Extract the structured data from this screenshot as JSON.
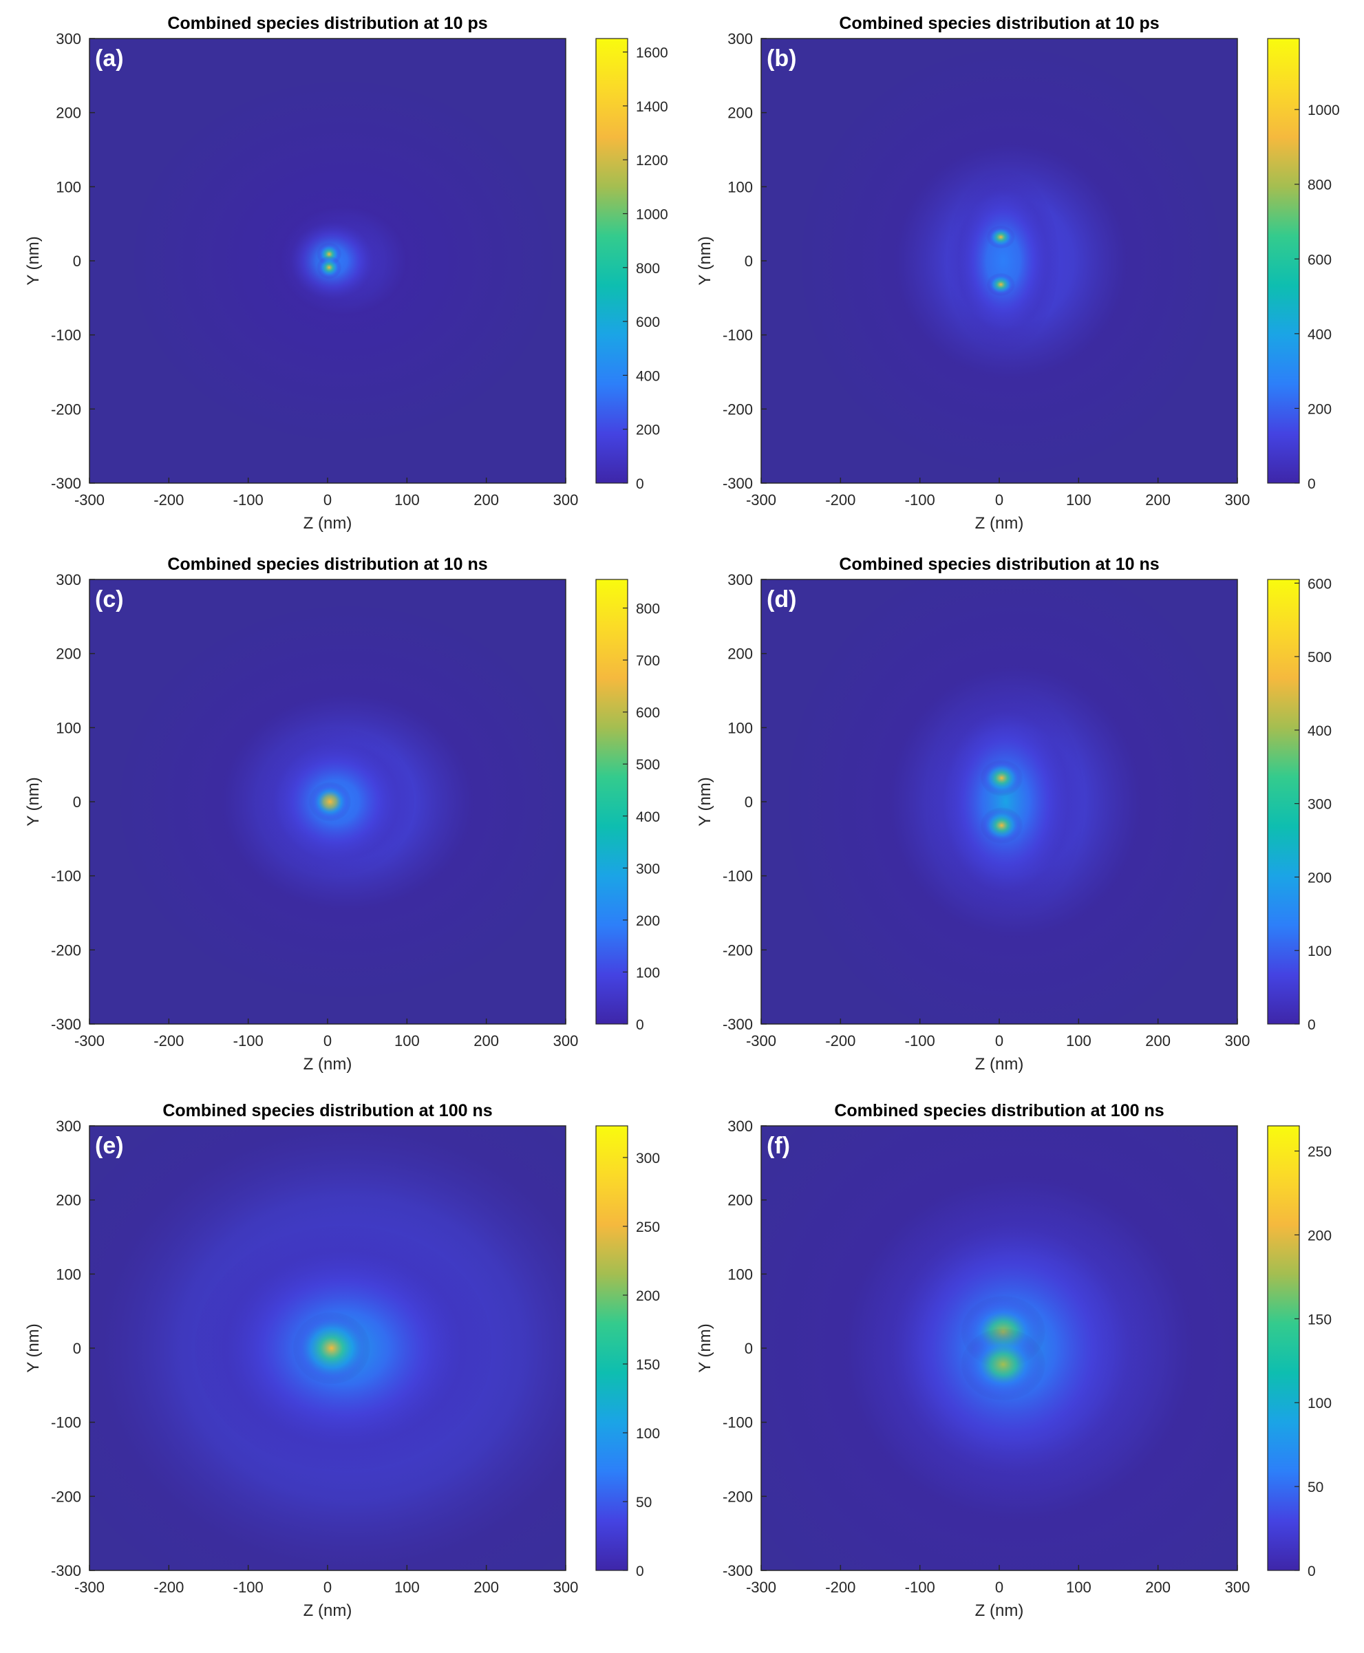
{
  "figure": {
    "colormap": [
      "#3e26a8",
      "#4443e2",
      "#2d7ff9",
      "#1ba4e6",
      "#0ebeb0",
      "#34cb8d",
      "#a4be51",
      "#f5b93e",
      "#fbda28",
      "#f9fb0e"
    ],
    "background_color": "#3a2f9a"
  },
  "chart_data": [
    {
      "type": "heatmap",
      "panel_label": "(a)",
      "title": "Combined species distribution at 10 ps",
      "xlabel": "Z (nm)",
      "ylabel": "Y (nm)",
      "xlim": [
        -300,
        300
      ],
      "ylim": [
        -300,
        300
      ],
      "x_ticks": [
        -300,
        -200,
        -100,
        0,
        100,
        200,
        300
      ],
      "y_ticks": [
        -300,
        -200,
        -100,
        0,
        100,
        200,
        300
      ],
      "colorbar_range": [
        0,
        1650
      ],
      "colorbar_ticks": [
        0,
        200,
        400,
        600,
        800,
        1000,
        1200,
        1400,
        1600
      ],
      "grid": false,
      "hotspots": [
        {
          "z": 2,
          "y": 9,
          "peak": 1300,
          "sigma_z": 7,
          "sigma_y": 7
        },
        {
          "z": 2,
          "y": -9,
          "peak": 1300,
          "sigma_z": 7,
          "sigma_y": 7
        }
      ],
      "halo": {
        "z": 5,
        "y": 0,
        "peak": 420,
        "sigma_z": 30,
        "sigma_y": 30
      },
      "outer_halo": {
        "z": 20,
        "y": 0,
        "peak": 120,
        "sigma_z": 120,
        "sigma_y": 110
      }
    },
    {
      "type": "heatmap",
      "panel_label": "(b)",
      "title": "Combined species distribution at 10 ps",
      "xlabel": "Z (nm)",
      "ylabel": "Y (nm)",
      "xlim": [
        -300,
        300
      ],
      "ylim": [
        -300,
        300
      ],
      "x_ticks": [
        -300,
        -200,
        -100,
        0,
        100,
        200,
        300
      ],
      "y_ticks": [
        -300,
        -200,
        -100,
        0,
        100,
        200,
        300
      ],
      "colorbar_range": [
        0,
        1190
      ],
      "colorbar_ticks": [
        0,
        200,
        400,
        600,
        800,
        1000
      ],
      "grid": false,
      "hotspots": [
        {
          "z": 2,
          "y": 32,
          "peak": 950,
          "sigma_z": 8,
          "sigma_y": 7
        },
        {
          "z": 2,
          "y": -32,
          "peak": 950,
          "sigma_z": 8,
          "sigma_y": 7
        }
      ],
      "halo": {
        "z": 5,
        "y": 0,
        "peak": 260,
        "sigma_z": 32,
        "sigma_y": 55
      },
      "outer_halo": {
        "z": 15,
        "y": 0,
        "peak": 90,
        "sigma_z": 120,
        "sigma_y": 130
      }
    },
    {
      "type": "heatmap",
      "panel_label": "(c)",
      "title": "Combined species distribution at 10 ns",
      "xlabel": "Z (nm)",
      "ylabel": "Y (nm)",
      "xlim": [
        -300,
        300
      ],
      "ylim": [
        -300,
        300
      ],
      "x_ticks": [
        -300,
        -200,
        -100,
        0,
        100,
        200,
        300
      ],
      "y_ticks": [
        -300,
        -200,
        -100,
        0,
        100,
        200,
        300
      ],
      "colorbar_range": [
        0,
        855
      ],
      "colorbar_ticks": [
        0,
        100,
        200,
        300,
        400,
        500,
        600,
        700,
        800
      ],
      "grid": false,
      "hotspots": [
        {
          "z": 3,
          "y": 0,
          "peak": 700,
          "sigma_z": 12,
          "sigma_y": 12
        }
      ],
      "halo": {
        "z": 10,
        "y": 0,
        "peak": 230,
        "sigma_z": 45,
        "sigma_y": 45
      },
      "outer_halo": {
        "z": 25,
        "y": 0,
        "peak": 90,
        "sigma_z": 130,
        "sigma_y": 120
      }
    },
    {
      "type": "heatmap",
      "panel_label": "(d)",
      "title": "Combined species distribution at 10 ns",
      "xlabel": "Z (nm)",
      "ylabel": "Y (nm)",
      "xlim": [
        -300,
        300
      ],
      "ylim": [
        -300,
        300
      ],
      "x_ticks": [
        -300,
        -200,
        -100,
        0,
        100,
        200,
        300
      ],
      "y_ticks": [
        -300,
        -200,
        -100,
        0,
        100,
        200,
        300
      ],
      "colorbar_range": [
        0,
        605
      ],
      "colorbar_ticks": [
        0,
        100,
        200,
        300,
        400,
        500,
        600
      ],
      "grid": false,
      "hotspots": [
        {
          "z": 3,
          "y": 32,
          "peak": 470,
          "sigma_z": 12,
          "sigma_y": 11
        },
        {
          "z": 3,
          "y": -32,
          "peak": 470,
          "sigma_z": 12,
          "sigma_y": 11
        }
      ],
      "halo": {
        "z": 8,
        "y": 0,
        "peak": 170,
        "sigma_z": 45,
        "sigma_y": 70
      },
      "outer_halo": {
        "z": 20,
        "y": 0,
        "peak": 70,
        "sigma_z": 130,
        "sigma_y": 150
      }
    },
    {
      "type": "heatmap",
      "panel_label": "(e)",
      "title": "Combined species distribution at 100 ns",
      "xlabel": "Z (nm)",
      "ylabel": "Y (nm)",
      "xlim": [
        -300,
        300
      ],
      "ylim": [
        -300,
        300
      ],
      "x_ticks": [
        -300,
        -200,
        -100,
        0,
        100,
        200,
        300
      ],
      "y_ticks": [
        -300,
        -200,
        -100,
        0,
        100,
        200,
        300
      ],
      "colorbar_range": [
        0,
        323
      ],
      "colorbar_ticks": [
        0,
        50,
        100,
        150,
        200,
        250,
        300
      ],
      "grid": false,
      "hotspots": [
        {
          "z": 5,
          "y": 0,
          "peak": 240,
          "sigma_z": 22,
          "sigma_y": 22
        }
      ],
      "halo": {
        "z": 20,
        "y": 0,
        "peak": 110,
        "sigma_z": 85,
        "sigma_y": 75
      },
      "outer_halo": {
        "z": 30,
        "y": 0,
        "peak": 45,
        "sigma_z": 180,
        "sigma_y": 170
      }
    },
    {
      "type": "heatmap",
      "panel_label": "(f)",
      "title": "Combined species distribution at 100 ns",
      "xlabel": "Z (nm)",
      "ylabel": "Y (nm)",
      "xlim": [
        -300,
        300
      ],
      "ylim": [
        -300,
        300
      ],
      "x_ticks": [
        -300,
        -200,
        -100,
        0,
        100,
        200,
        300
      ],
      "y_ticks": [
        -300,
        -200,
        -100,
        0,
        100,
        200,
        300
      ],
      "colorbar_range": [
        0,
        265
      ],
      "colorbar_ticks": [
        0,
        50,
        100,
        150,
        200,
        250
      ],
      "grid": false,
      "hotspots": [
        {
          "z": 5,
          "y": 22,
          "peak": 175,
          "sigma_z": 24,
          "sigma_y": 22
        },
        {
          "z": 5,
          "y": -22,
          "peak": 175,
          "sigma_z": 24,
          "sigma_y": 22
        }
      ],
      "halo": {
        "z": 15,
        "y": 0,
        "peak": 85,
        "sigma_z": 85,
        "sigma_y": 95
      },
      "outer_halo": {
        "z": 25,
        "y": 0,
        "peak": 35,
        "sigma_z": 180,
        "sigma_y": 190
      }
    }
  ]
}
